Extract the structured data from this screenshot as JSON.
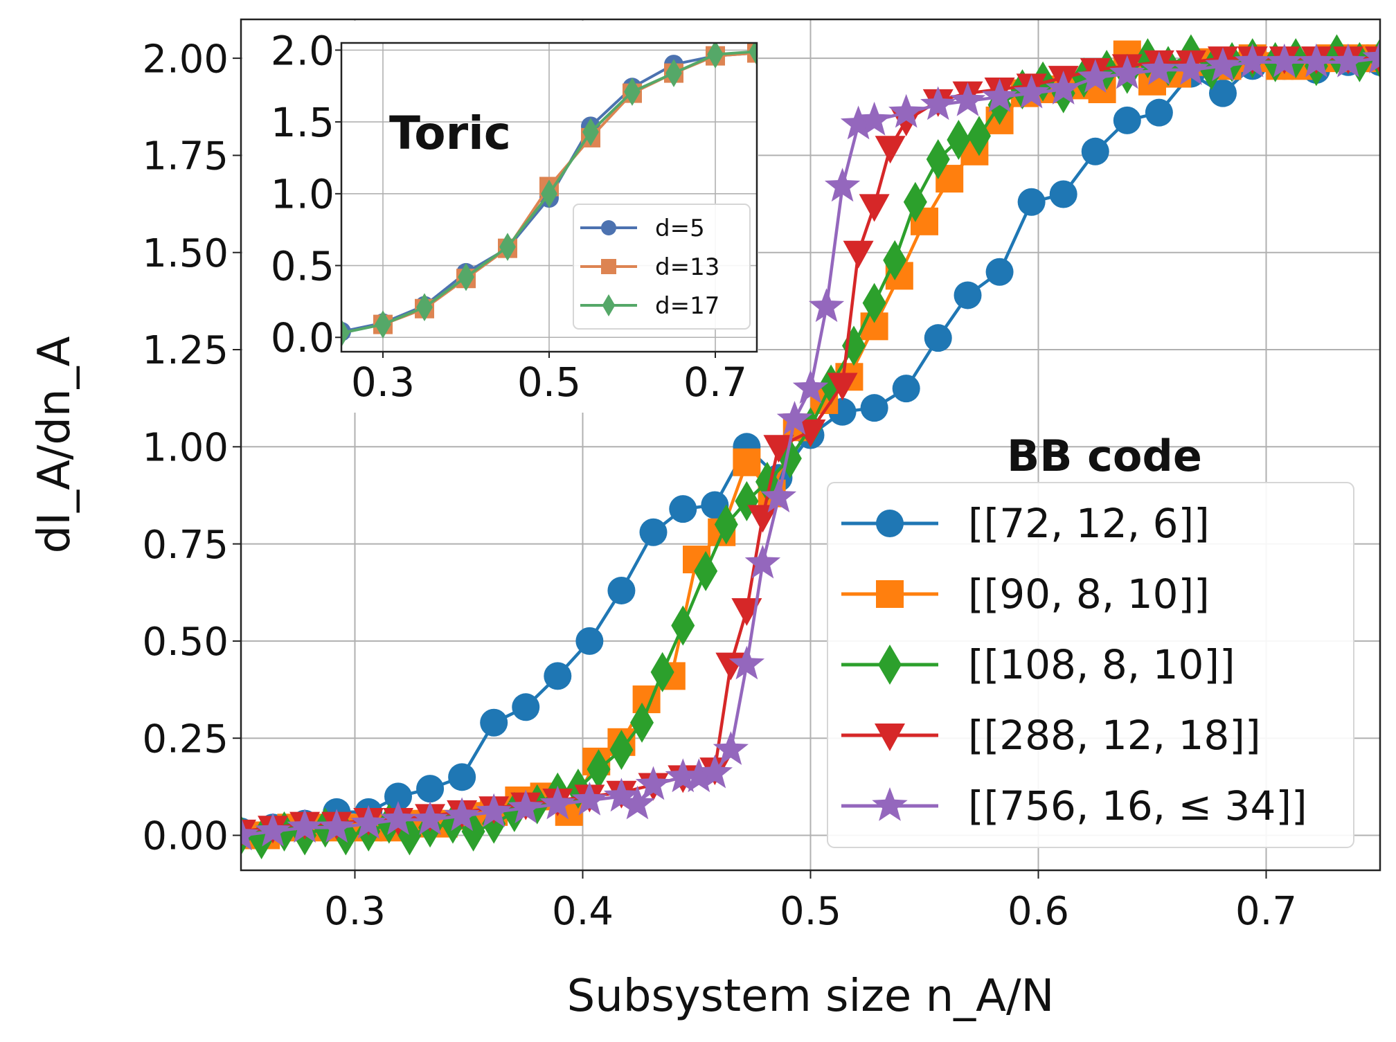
{
  "chart_data": [
    {
      "type": "line",
      "title": "",
      "xlabel": "Subsystem size n_A/N",
      "ylabel": "dI_A/dn_A",
      "xlim": [
        0.25,
        0.75
      ],
      "ylim": [
        -0.09,
        2.1
      ],
      "xticks": [
        "0.3",
        "0.4",
        "0.5",
        "0.6",
        "0.7"
      ],
      "yticks": [
        "0.00",
        "0.25",
        "0.50",
        "0.75",
        "1.00",
        "1.25",
        "1.50",
        "1.75",
        "2.00"
      ],
      "grid": true,
      "legend_title": "BB code",
      "legend_position": "lower-right",
      "series": [
        {
          "name": "[[72, 12, 6]]",
          "color": "#1f77b4",
          "marker": "circle",
          "x": [
            0.25,
            0.264,
            0.278,
            0.292,
            0.306,
            0.319,
            0.333,
            0.347,
            0.361,
            0.375,
            0.389,
            0.403,
            0.417,
            0.431,
            0.444,
            0.458,
            0.472,
            0.486,
            0.5,
            0.514,
            0.528,
            0.542,
            0.556,
            0.569,
            0.583,
            0.597,
            0.611,
            0.625,
            0.639,
            0.653,
            0.667,
            0.681,
            0.694,
            0.708,
            0.722,
            0.736,
            0.75
          ],
          "y": [
            0.01,
            0.02,
            0.03,
            0.06,
            0.06,
            0.1,
            0.12,
            0.15,
            0.29,
            0.33,
            0.41,
            0.5,
            0.63,
            0.78,
            0.84,
            0.85,
            1.0,
            0.92,
            1.03,
            1.09,
            1.1,
            1.15,
            1.28,
            1.39,
            1.45,
            1.63,
            1.65,
            1.76,
            1.84,
            1.86,
            1.96,
            1.91,
            1.98,
            1.98,
            1.97,
            1.99,
            1.99
          ]
        },
        {
          "name": "[[90, 8, 10]]",
          "color": "#ff7f0e",
          "marker": "square",
          "x": [
            0.25,
            0.261,
            0.272,
            0.283,
            0.294,
            0.306,
            0.317,
            0.328,
            0.339,
            0.35,
            0.361,
            0.372,
            0.383,
            0.394,
            0.406,
            0.417,
            0.428,
            0.439,
            0.45,
            0.461,
            0.472,
            0.483,
            0.494,
            0.506,
            0.517,
            0.528,
            0.539,
            0.55,
            0.561,
            0.572,
            0.583,
            0.594,
            0.606,
            0.617,
            0.628,
            0.639,
            0.65,
            0.661,
            0.672,
            0.683,
            0.694,
            0.706,
            0.717,
            0.728,
            0.739,
            0.75
          ],
          "y": [
            0.0,
            0.0,
            0.02,
            0.02,
            0.02,
            0.02,
            0.02,
            0.03,
            0.03,
            0.05,
            0.06,
            0.09,
            0.1,
            0.06,
            0.19,
            0.24,
            0.35,
            0.41,
            0.71,
            0.78,
            0.96,
            0.88,
            1.05,
            1.12,
            1.18,
            1.31,
            1.44,
            1.58,
            1.69,
            1.76,
            1.84,
            1.91,
            1.92,
            1.93,
            1.92,
            2.01,
            1.94,
            1.96,
            1.99,
            1.98,
            2.0,
            1.98,
            1.98,
            2.0,
            2.0,
            2.0
          ]
        },
        {
          "name": "[[108, 8, 10]]",
          "color": "#2ca02c",
          "marker": "diamond",
          "x": [
            0.25,
            0.259,
            0.269,
            0.278,
            0.287,
            0.296,
            0.306,
            0.315,
            0.324,
            0.333,
            0.343,
            0.352,
            0.361,
            0.37,
            0.38,
            0.389,
            0.398,
            0.407,
            0.417,
            0.426,
            0.435,
            0.444,
            0.454,
            0.463,
            0.472,
            0.481,
            0.491,
            0.5,
            0.509,
            0.519,
            0.528,
            0.537,
            0.546,
            0.556,
            0.565,
            0.574,
            0.583,
            0.593,
            0.602,
            0.611,
            0.62,
            0.63,
            0.639,
            0.648,
            0.657,
            0.667,
            0.676,
            0.685,
            0.694,
            0.704,
            0.713,
            0.722,
            0.731,
            0.741,
            0.75
          ],
          "y": [
            0.0,
            -0.01,
            0.01,
            0.0,
            0.02,
            0.0,
            0.01,
            0.03,
            0.0,
            0.02,
            0.03,
            0.01,
            0.03,
            0.06,
            0.08,
            0.11,
            0.12,
            0.17,
            0.22,
            0.29,
            0.42,
            0.54,
            0.68,
            0.8,
            0.86,
            0.91,
            0.97,
            1.05,
            1.16,
            1.26,
            1.37,
            1.48,
            1.63,
            1.74,
            1.79,
            1.8,
            1.88,
            1.92,
            1.94,
            1.91,
            1.95,
            1.97,
            1.96,
            2.0,
            1.98,
            2.01,
            1.97,
            1.99,
            2.0,
            1.99,
            2.0,
            1.98,
            2.01,
            1.99,
            2.0
          ]
        },
        {
          "name": "[[288, 12, 18]]",
          "color": "#d62728",
          "marker": "triangle-down",
          "x": [
            0.25,
            0.264,
            0.278,
            0.292,
            0.306,
            0.319,
            0.333,
            0.347,
            0.361,
            0.375,
            0.389,
            0.403,
            0.417,
            0.431,
            0.444,
            0.458,
            0.465,
            0.472,
            0.479,
            0.486,
            0.5,
            0.514,
            0.521,
            0.528,
            0.535,
            0.542,
            0.556,
            0.569,
            0.583,
            0.597,
            0.611,
            0.625,
            0.639,
            0.653,
            0.667,
            0.681,
            0.694,
            0.708,
            0.722,
            0.736,
            0.75
          ],
          "y": [
            0.01,
            0.02,
            0.03,
            0.03,
            0.04,
            0.04,
            0.05,
            0.06,
            0.07,
            0.08,
            0.09,
            0.1,
            0.11,
            0.13,
            0.15,
            0.17,
            0.44,
            0.58,
            0.82,
            1.0,
            1.04,
            1.16,
            1.5,
            1.62,
            1.77,
            1.84,
            1.89,
            1.91,
            1.92,
            1.93,
            1.95,
            1.97,
            1.98,
            1.99,
            1.99,
            2.0,
            2.0,
            2.0,
            2.0,
            2.0,
            2.0
          ]
        },
        {
          "name": "[[756, 16, ≤ 34]]",
          "color": "#9467bd",
          "marker": "star",
          "x": [
            0.25,
            0.264,
            0.278,
            0.292,
            0.306,
            0.319,
            0.333,
            0.347,
            0.361,
            0.375,
            0.389,
            0.403,
            0.417,
            0.424,
            0.431,
            0.444,
            0.451,
            0.458,
            0.465,
            0.472,
            0.479,
            0.486,
            0.493,
            0.5,
            0.507,
            0.514,
            0.521,
            0.528,
            0.542,
            0.556,
            0.569,
            0.583,
            0.597,
            0.611,
            0.625,
            0.639,
            0.653,
            0.667,
            0.681,
            0.694,
            0.708,
            0.722,
            0.736,
            0.75
          ],
          "y": [
            0.0,
            0.01,
            0.02,
            0.02,
            0.03,
            0.04,
            0.04,
            0.05,
            0.06,
            0.07,
            0.08,
            0.09,
            0.1,
            0.08,
            0.13,
            0.15,
            0.15,
            0.16,
            0.22,
            0.44,
            0.7,
            0.87,
            1.07,
            1.15,
            1.36,
            1.67,
            1.83,
            1.84,
            1.86,
            1.88,
            1.89,
            1.9,
            1.91,
            1.92,
            1.95,
            1.96,
            1.97,
            1.97,
            1.98,
            1.99,
            1.99,
            1.99,
            1.99,
            2.0
          ]
        }
      ]
    },
    {
      "type": "line",
      "title": "Toric",
      "xlim": [
        0.25,
        0.75
      ],
      "ylim": [
        -0.1,
        2.05
      ],
      "xticks": [
        "0.3",
        "0.5",
        "0.7"
      ],
      "yticks": [
        "0.0",
        "0.5",
        "1.0",
        "1.5",
        "2.0"
      ],
      "grid": true,
      "legend_position": "lower-right",
      "series": [
        {
          "name": "d=5",
          "color": "#4c72b0",
          "marker": "circle",
          "x": [
            0.25,
            0.3,
            0.35,
            0.4,
            0.45,
            0.5,
            0.55,
            0.6,
            0.65,
            0.7,
            0.75
          ],
          "y": [
            0.04,
            0.1,
            0.22,
            0.45,
            0.62,
            0.97,
            1.47,
            1.74,
            1.9,
            1.96,
            1.98
          ]
        },
        {
          "name": "d=13",
          "color": "#dd8452",
          "marker": "square",
          "x": [
            0.3,
            0.35,
            0.4,
            0.45,
            0.5,
            0.55,
            0.6,
            0.65,
            0.7,
            0.75
          ],
          "y": [
            0.09,
            0.2,
            0.41,
            0.62,
            1.05,
            1.39,
            1.7,
            1.84,
            1.96,
            1.98
          ]
        },
        {
          "name": "d=17",
          "color": "#55a868",
          "marker": "diamond",
          "x": [
            0.25,
            0.3,
            0.35,
            0.4,
            0.45,
            0.5,
            0.55,
            0.6,
            0.65,
            0.7,
            0.75
          ],
          "y": [
            0.03,
            0.09,
            0.21,
            0.42,
            0.63,
            1.0,
            1.43,
            1.71,
            1.84,
            1.97,
            1.99
          ]
        }
      ]
    }
  ]
}
